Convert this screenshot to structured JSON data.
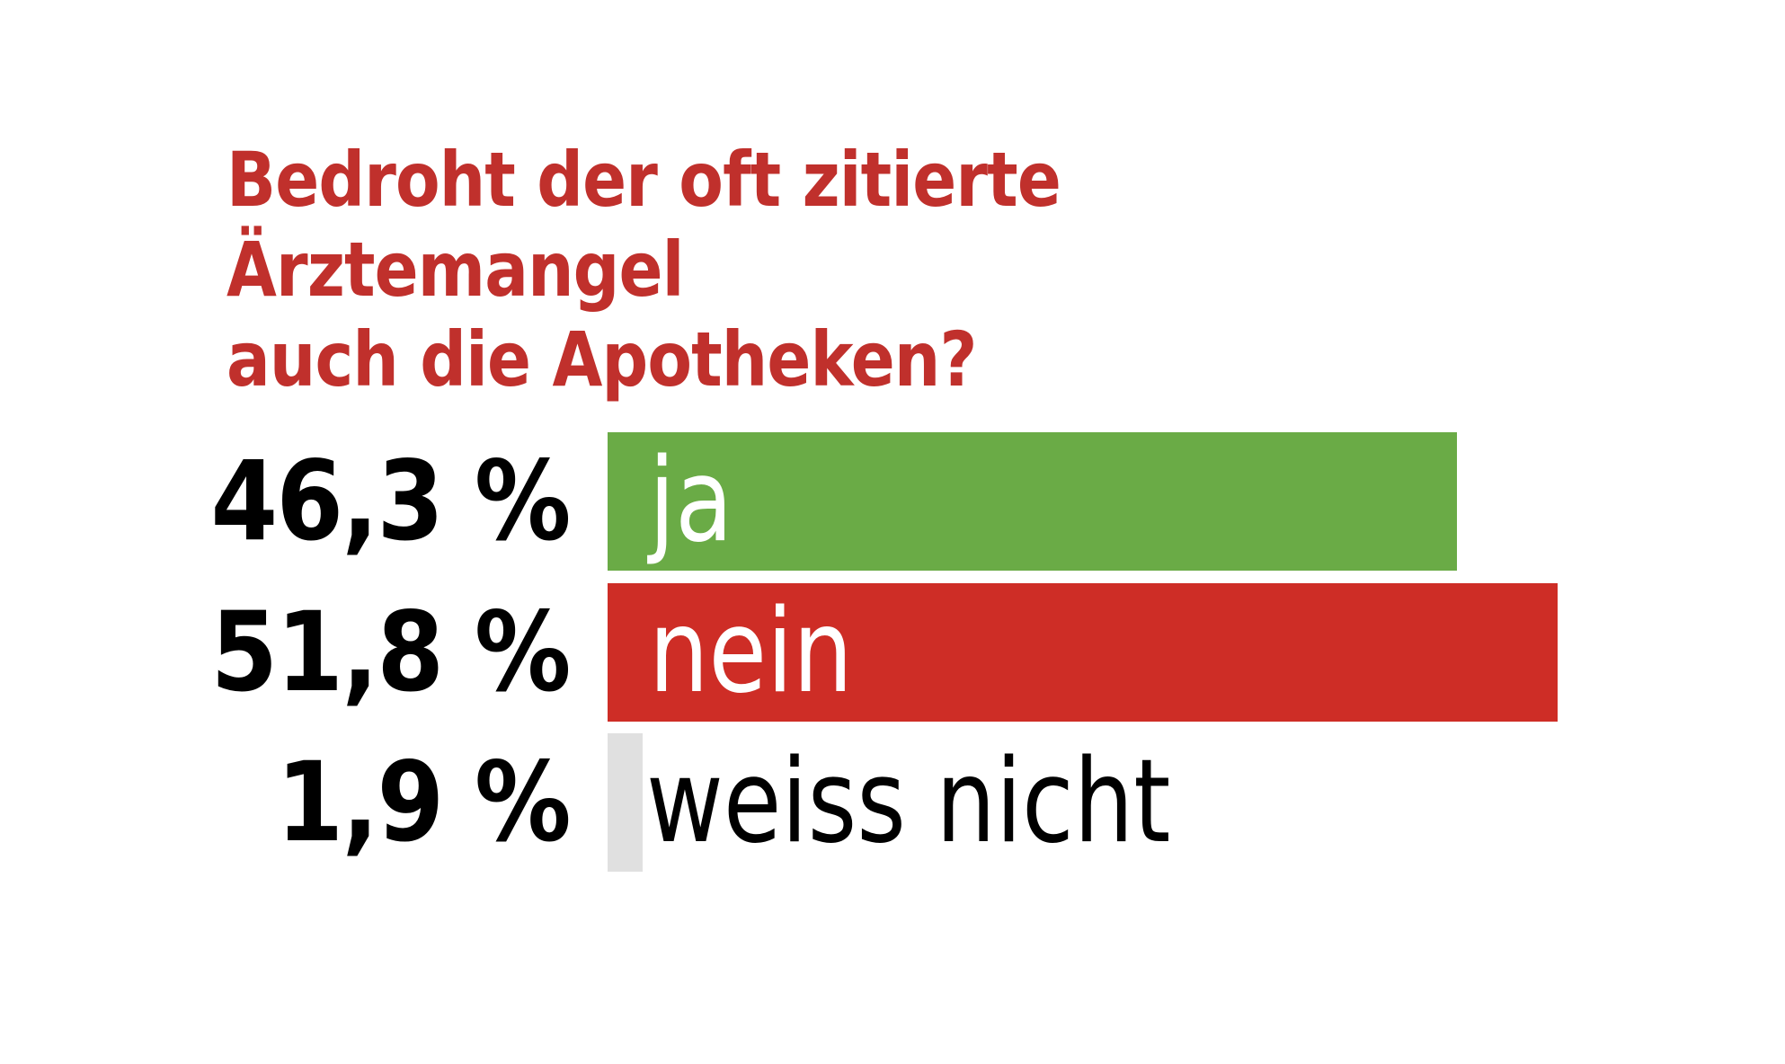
{
  "chart_data": {
    "type": "bar",
    "orientation": "horizontal",
    "title": "Bedroht der oft zitierte Ärztemangel auch die Apotheken?",
    "title_lines": [
      "Bedroht der oft zitierte Ärztemangel",
      "auch die Apotheken?"
    ],
    "categories": [
      "ja",
      "nein",
      "weiss nicht"
    ],
    "values": [
      46.3,
      51.8,
      1.9
    ],
    "value_labels": [
      "46,3 %",
      "51,8 %",
      "1,9 %"
    ],
    "unit": "%",
    "colors": [
      "#6aab46",
      "#ce2d26",
      "#e0e0e0"
    ],
    "label_colors": [
      "#ffffff",
      "#ffffff",
      "#000000"
    ],
    "title_color": "#c0302c",
    "grid": false,
    "legend": "none"
  }
}
